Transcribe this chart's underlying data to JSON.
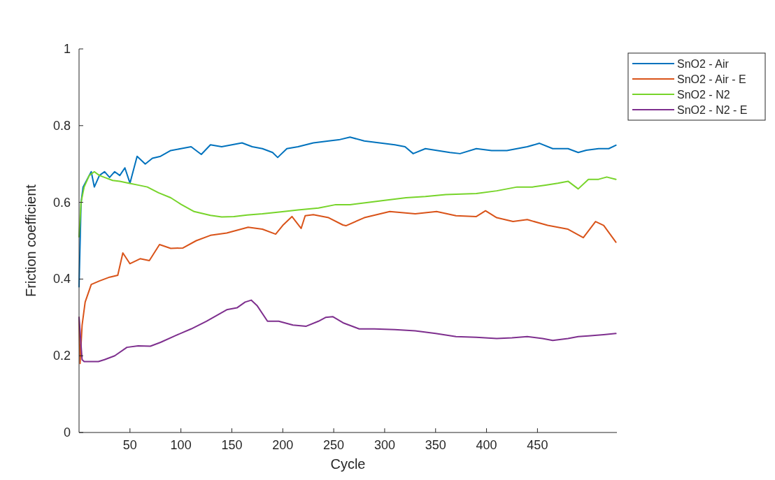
{
  "chart_data": {
    "type": "line",
    "xlabel": "Cycle",
    "ylabel": "Friction coefficient",
    "xlim": [
      0,
      528
    ],
    "ylim": [
      0,
      1
    ],
    "xticks": [
      50,
      100,
      150,
      200,
      250,
      300,
      350,
      400,
      450
    ],
    "yticks": [
      0,
      0.2,
      0.4,
      0.6,
      0.8,
      1
    ],
    "grid": false,
    "legend": "top right",
    "line_style": "solid",
    "marker": "none",
    "series": [
      {
        "name": "SnO2 - Air",
        "color": "#0072bd",
        "x": [
          0,
          2,
          4,
          8,
          12,
          15,
          20,
          25,
          30,
          35,
          40,
          45,
          50,
          57,
          65,
          72,
          80,
          90,
          100,
          110,
          120,
          129,
          140,
          150,
          160,
          170,
          180,
          190,
          195,
          204,
          215,
          230,
          245,
          255,
          266,
          280,
          295,
          310,
          320,
          328,
          340,
          352,
          364,
          374,
          390,
          405,
          420,
          440,
          452,
          465,
          480,
          490,
          498,
          510,
          520,
          527
        ],
        "values": [
          0.38,
          0.6,
          0.64,
          0.66,
          0.68,
          0.64,
          0.67,
          0.68,
          0.665,
          0.68,
          0.67,
          0.69,
          0.65,
          0.72,
          0.7,
          0.715,
          0.72,
          0.735,
          0.74,
          0.745,
          0.725,
          0.75,
          0.745,
          0.75,
          0.755,
          0.745,
          0.74,
          0.73,
          0.717,
          0.74,
          0.745,
          0.755,
          0.76,
          0.763,
          0.77,
          0.76,
          0.755,
          0.75,
          0.745,
          0.727,
          0.74,
          0.735,
          0.73,
          0.727,
          0.74,
          0.735,
          0.735,
          0.745,
          0.754,
          0.74,
          0.74,
          0.73,
          0.736,
          0.74,
          0.74,
          0.749
        ]
      },
      {
        "name": "SnO2 - Air - E",
        "color": "#d95319",
        "x": [
          0,
          1,
          3,
          6,
          12,
          20,
          30,
          38,
          43,
          50,
          60,
          69,
          79,
          90,
          102,
          115,
          129,
          145,
          166,
          180,
          193,
          200,
          209,
          218,
          222,
          230,
          245,
          259,
          262,
          280,
          305,
          330,
          351,
          370,
          390,
          399,
          410,
          426,
          440,
          460,
          480,
          495,
          507,
          515,
          527
        ],
        "values": [
          0.3,
          0.18,
          0.28,
          0.34,
          0.386,
          0.395,
          0.405,
          0.41,
          0.468,
          0.44,
          0.453,
          0.448,
          0.49,
          0.48,
          0.481,
          0.5,
          0.514,
          0.52,
          0.535,
          0.53,
          0.517,
          0.54,
          0.563,
          0.532,
          0.565,
          0.568,
          0.56,
          0.541,
          0.539,
          0.56,
          0.576,
          0.57,
          0.576,
          0.565,
          0.563,
          0.578,
          0.56,
          0.55,
          0.555,
          0.54,
          0.53,
          0.508,
          0.55,
          0.54,
          0.496
        ]
      },
      {
        "name": "SnO2 - N2",
        "color": "#77d42a",
        "x": [
          0,
          2,
          5,
          10,
          15,
          20,
          25,
          33,
          40,
          49,
          58,
          67,
          78,
          90,
          100,
          113,
          129,
          140,
          152,
          165,
          180,
          198,
          215,
          235,
          252,
          266,
          285,
          300,
          321,
          340,
          360,
          390,
          410,
          430,
          445,
          458,
          470,
          480,
          490,
          500,
          510,
          518,
          527
        ],
        "values": [
          0.51,
          0.6,
          0.64,
          0.67,
          0.68,
          0.67,
          0.665,
          0.657,
          0.655,
          0.65,
          0.645,
          0.64,
          0.625,
          0.612,
          0.595,
          0.576,
          0.566,
          0.562,
          0.563,
          0.567,
          0.57,
          0.575,
          0.58,
          0.585,
          0.594,
          0.594,
          0.6,
          0.605,
          0.612,
          0.615,
          0.62,
          0.623,
          0.63,
          0.64,
          0.64,
          0.645,
          0.65,
          0.655,
          0.635,
          0.66,
          0.66,
          0.666,
          0.66
        ]
      },
      {
        "name": "SnO2 - N2 - E",
        "color": "#7e2f8e",
        "x": [
          0,
          3,
          5,
          12,
          19,
          25,
          35,
          47,
          58,
          70,
          80,
          95,
          110,
          125,
          135,
          145,
          155,
          163,
          169,
          175,
          185,
          196,
          210,
          223,
          235,
          242,
          249,
          260,
          275,
          290,
          310,
          330,
          350,
          370,
          390,
          410,
          425,
          440,
          455,
          465,
          480,
          490,
          500,
          515,
          527
        ],
        "values": [
          0.3,
          0.19,
          0.185,
          0.185,
          0.185,
          0.19,
          0.2,
          0.222,
          0.226,
          0.225,
          0.235,
          0.253,
          0.27,
          0.29,
          0.305,
          0.32,
          0.325,
          0.34,
          0.345,
          0.33,
          0.29,
          0.29,
          0.28,
          0.277,
          0.29,
          0.3,
          0.302,
          0.285,
          0.27,
          0.27,
          0.268,
          0.265,
          0.258,
          0.25,
          0.248,
          0.245,
          0.247,
          0.25,
          0.245,
          0.24,
          0.245,
          0.25,
          0.252,
          0.255,
          0.258
        ]
      }
    ]
  }
}
